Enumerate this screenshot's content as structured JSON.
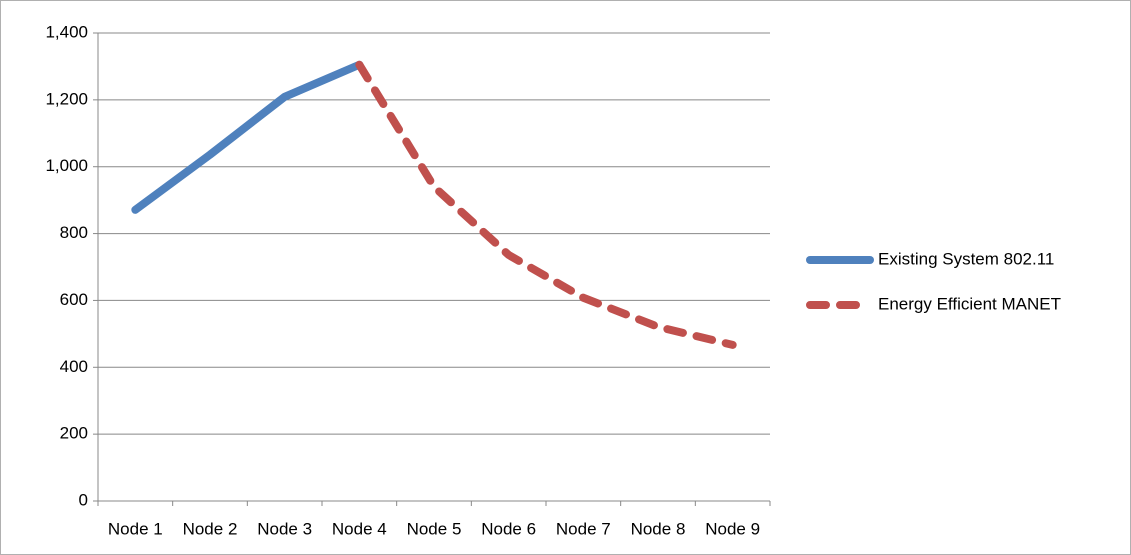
{
  "chart_data": {
    "type": "line",
    "categories": [
      "Node 1",
      "Node 2",
      "Node 3",
      "Node 4",
      "Node 5",
      "Node 6",
      "Node 7",
      "Node 8",
      "Node 9"
    ],
    "series": [
      {
        "name": "Existing System 802.11",
        "color": "#4f81bd",
        "dash": false,
        "values": [
          871,
          1036,
          1209,
          1305,
          null,
          null,
          null,
          null,
          null
        ]
      },
      {
        "name": "Energy Efficient MANET",
        "color": "#c0504d",
        "dash": true,
        "values": [
          null,
          null,
          null,
          1305,
          940,
          736,
          608,
          521,
          467
        ]
      }
    ],
    "ylim": [
      0,
      1400
    ],
    "yticks": [
      0,
      200,
      400,
      600,
      800,
      {
        "value": 1000,
        "label": "1,000"
      },
      {
        "value": 1200,
        "label": "1,200"
      },
      {
        "value": 1400,
        "label": "1,400"
      }
    ],
    "grid": true,
    "legend": "right"
  }
}
